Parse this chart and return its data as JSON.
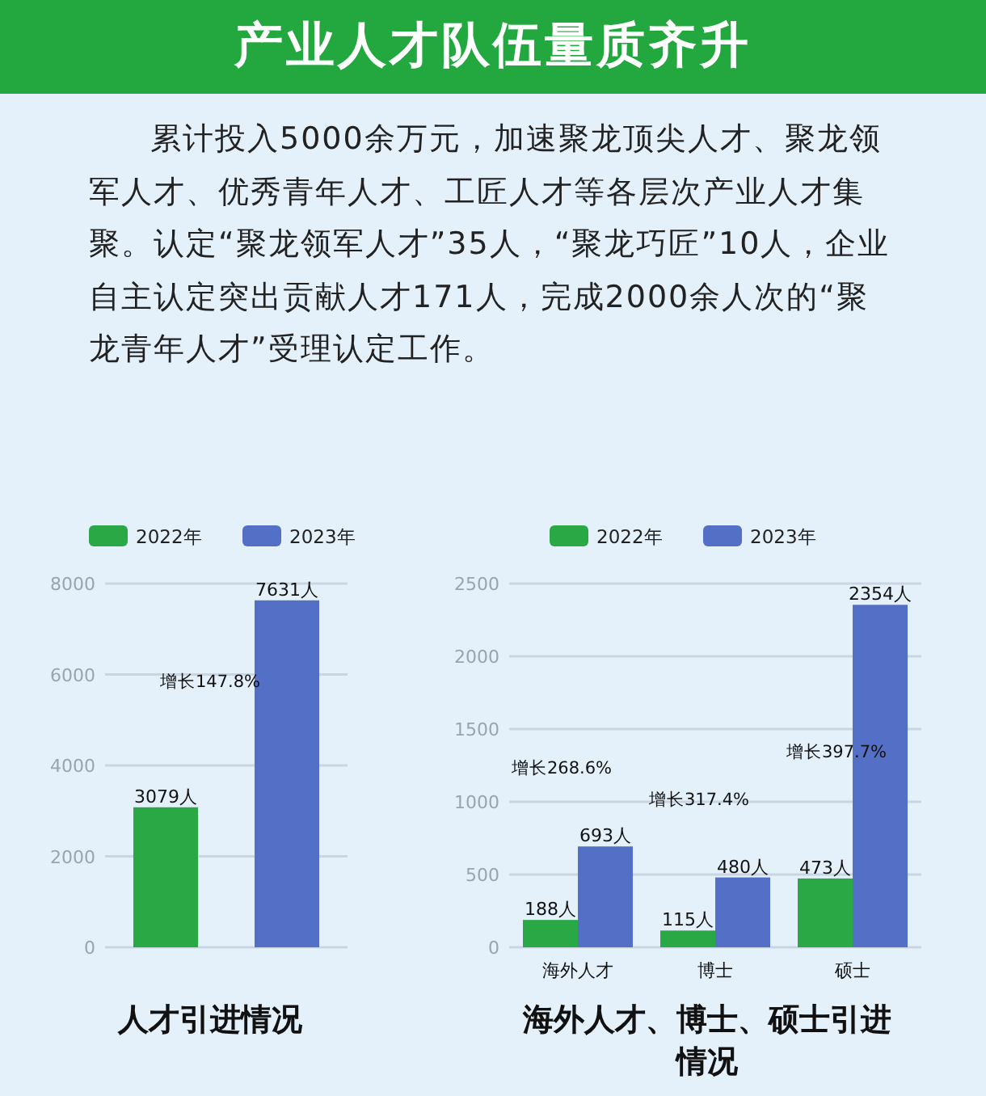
{
  "chart_data": [
    {
      "type": "other",
      "title": "产业人才队伍量质齐升",
      "annotations": [
        "累计投入5000余万元，加速聚龙顶尖人才、聚龙领军人才、优秀青年人才、工匠人才等各层次产业人才集聚。认定“聚龙领军人才”35人，“聚龙巧匠”10人，企业自主认定突出贡献人才171人，完成2000余人次的“聚龙青年人才”受理认定工作。"
      ]
    },
    {
      "type": "bar",
      "title": "人才引进情况",
      "categories": [
        null
      ],
      "series": [
        {
          "name": "2022年",
          "color": "#2aa845",
          "values": [
            3079
          ],
          "value_labels": [
            "3079人"
          ]
        },
        {
          "name": "2023年",
          "color": "#5470c6",
          "values": [
            7631
          ],
          "value_labels": [
            "7631人"
          ]
        }
      ],
      "ylim": [
        0,
        8000
      ],
      "yticks": [
        0,
        2000,
        4000,
        6000,
        8000
      ],
      "grid": "y",
      "legend": "top",
      "annotations": [
        "增长147.8%"
      ]
    },
    {
      "type": "bar",
      "title": "海外人才、博士、硕士引进情况",
      "categories": [
        "海外人才",
        "博士",
        "硕士"
      ],
      "series": [
        {
          "name": "2022年",
          "color": "#2aa845",
          "values": [
            188,
            115,
            473
          ],
          "value_labels": [
            "188人",
            "115人",
            "473人"
          ]
        },
        {
          "name": "2023年",
          "color": "#5470c6",
          "values": [
            693,
            480,
            2354
          ],
          "value_labels": [
            "693人",
            "480人",
            "2354人"
          ]
        }
      ],
      "ylim": [
        0,
        2500
      ],
      "yticks": [
        0,
        500,
        1000,
        1500,
        2000,
        2500
      ],
      "grid": "y",
      "legend": "top",
      "annotations": [
        "增长268.6%",
        "增长317.4%",
        "增长397.7%"
      ]
    }
  ]
}
